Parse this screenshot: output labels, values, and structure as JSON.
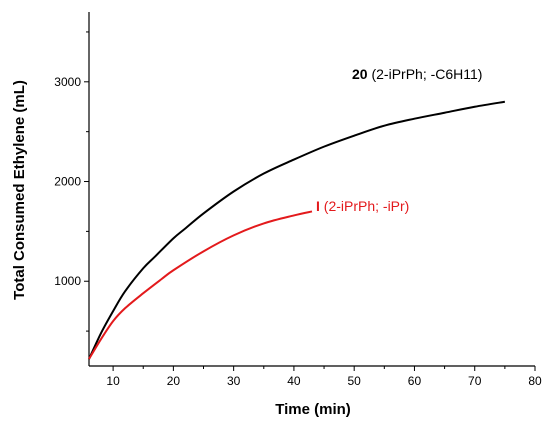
{
  "chart_data": {
    "type": "line",
    "xlabel": "Time (min)",
    "ylabel": "Total Consumed Ethylene (mL)",
    "xlim": [
      6,
      80
    ],
    "ylim": [
      150,
      3700
    ],
    "x_ticks": [
      10,
      20,
      30,
      40,
      50,
      60,
      70,
      80
    ],
    "y_ticks": [
      1000,
      2000,
      3000
    ],
    "grid": false,
    "series": [
      {
        "name": "20 (2-iPrPh; -C6H11)",
        "label_bold": "20",
        "label_rest": " (2-iPrPh; -C6H11)",
        "color": "#000000",
        "x": [
          6,
          8,
          10,
          12,
          15,
          17,
          20,
          22,
          25,
          30,
          35,
          40,
          45,
          50,
          55,
          60,
          65,
          70,
          75
        ],
        "y": [
          220,
          480,
          700,
          900,
          1130,
          1250,
          1430,
          1530,
          1680,
          1900,
          2080,
          2220,
          2350,
          2460,
          2560,
          2630,
          2690,
          2750,
          2800
        ]
      },
      {
        "name": "I (2-iPrPh; -iPr)",
        "label_bold": "I",
        "label_rest": " (2-iPrPh; -iPr)",
        "color": "#e31a1c",
        "x": [
          6,
          8,
          10,
          12,
          15,
          18,
          20,
          25,
          30,
          35,
          40,
          43
        ],
        "y": [
          220,
          420,
          600,
          730,
          880,
          1020,
          1110,
          1300,
          1460,
          1580,
          1660,
          1700
        ]
      }
    ]
  }
}
